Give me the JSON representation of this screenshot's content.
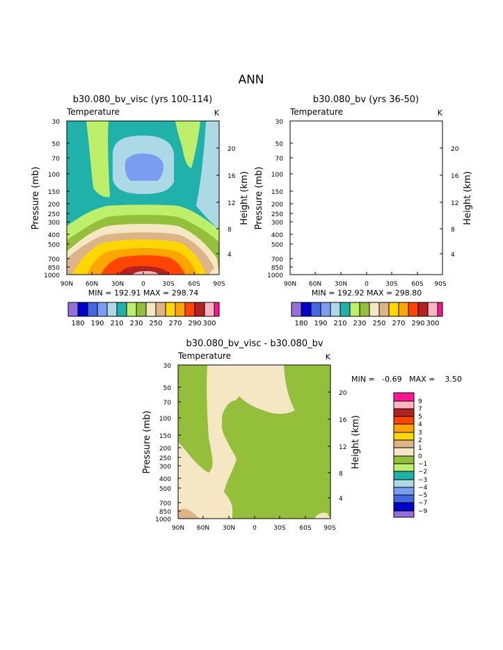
{
  "page_title": "ANN",
  "colors": {
    "c180": "#9370db",
    "c185": "#0000cd",
    "c190": "#4169e1",
    "c200": "#7b9cf0",
    "c210": "#add8e6",
    "c220": "#20b2aa",
    "c230": "#bdef6b",
    "c240": "#94bf3a",
    "c250": "#f5e6c4",
    "c260": "#dbb587",
    "c270": "#ffd700",
    "c280": "#ffa500",
    "c290": "#ff4500",
    "c300": "#b22222",
    "c310": "#ffb6c1",
    "c320": "#ff1493"
  },
  "chart_data": [
    {
      "type": "heatmap",
      "title": "b30.080_bv_visc (yrs 100-114)",
      "subtitle_left": "Temperature",
      "subtitle_right": "K",
      "xlabel": "",
      "ylabel": "Pressure (mb)",
      "y2label": "Height (km)",
      "x_ticks": [
        "90N",
        "60N",
        "30N",
        "0",
        "30S",
        "60S",
        "90S"
      ],
      "y_ticks": [
        "30",
        "50",
        "70",
        "100",
        "150",
        "200",
        "250",
        "300",
        "400",
        "500",
        "700",
        "850",
        "1000"
      ],
      "y2_ticks": [
        "20",
        "16",
        "12",
        "8",
        "4"
      ],
      "ylim": [
        1000,
        30
      ],
      "xlim": [
        90,
        -90
      ],
      "stats": "MIN = 192.91   MAX = 298.74",
      "levels": [
        180,
        185,
        190,
        200,
        210,
        220,
        230,
        240,
        250,
        260,
        270,
        280,
        290,
        300,
        310
      ],
      "colorbar_labels": [
        "180",
        "190",
        "210",
        "230",
        "250",
        "270",
        "290",
        "300"
      ]
    },
    {
      "type": "heatmap",
      "title": "b30.080_bv (yrs 36-50)",
      "subtitle_left": "Temperature",
      "subtitle_right": "K",
      "xlabel": "",
      "ylabel": "Pressure (mb)",
      "y2label": "Height (km)",
      "x_ticks": [
        "90N",
        "60N",
        "30N",
        "0",
        "30S",
        "60S",
        "90S"
      ],
      "y_ticks": [
        "30",
        "50",
        "70",
        "100",
        "150",
        "200",
        "250",
        "300",
        "400",
        "500",
        "700",
        "850",
        "1000"
      ],
      "y2_ticks": [
        "20",
        "16",
        "12",
        "8",
        "4"
      ],
      "ylim": [
        1000,
        30
      ],
      "xlim": [
        90,
        -90
      ],
      "stats": "MIN = 192.92   MAX = 298.80",
      "levels": [
        180,
        185,
        190,
        200,
        210,
        220,
        230,
        240,
        250,
        260,
        270,
        280,
        290,
        300,
        310
      ],
      "colorbar_labels": [
        "180",
        "190",
        "210",
        "230",
        "250",
        "270",
        "290",
        "300"
      ]
    },
    {
      "type": "heatmap",
      "title": "b30.080_bv_visc - b30.080_bv",
      "subtitle_left": "Temperature",
      "subtitle_right": "K",
      "xlabel": "",
      "ylabel": "Pressure (mb)",
      "y2label": "Height (km)",
      "x_ticks": [
        "90N",
        "60N",
        "30N",
        "0",
        "30S",
        "60S",
        "90S"
      ],
      "y_ticks": [
        "30",
        "50",
        "70",
        "100",
        "150",
        "200",
        "250",
        "300",
        "400",
        "500",
        "700",
        "850",
        "1000"
      ],
      "y2_ticks": [
        "20",
        "16",
        "12",
        "8",
        "4"
      ],
      "ylim": [
        1000,
        30
      ],
      "xlim": [
        90,
        -90
      ],
      "stats": "MIN =   -0.69   MAX =    3.50",
      "levels": [
        -9,
        -7,
        -5,
        -4,
        -3,
        -2,
        -1,
        0,
        1,
        2,
        3,
        4,
        5,
        7,
        9
      ],
      "colorbar_labels": [
        "9",
        "7",
        "5",
        "4",
        "3",
        "2",
        "1",
        "0",
        "−1",
        "−2",
        "−3",
        "−4",
        "−5",
        "−7",
        "−9"
      ]
    }
  ]
}
